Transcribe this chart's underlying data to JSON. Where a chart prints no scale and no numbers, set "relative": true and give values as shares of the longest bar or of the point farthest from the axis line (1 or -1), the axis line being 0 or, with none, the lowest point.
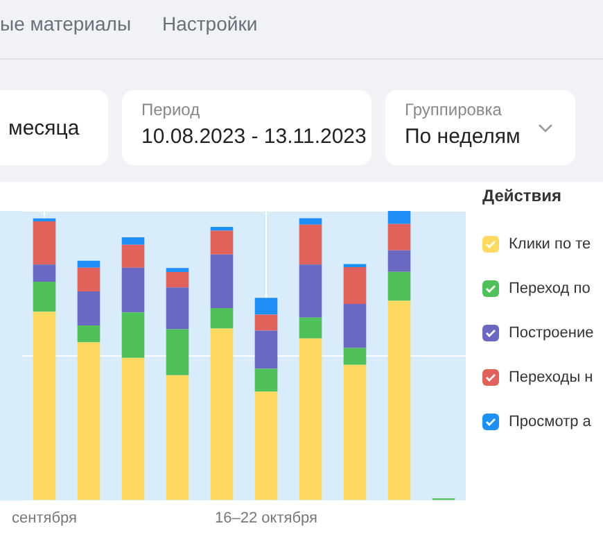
{
  "chart_data": {
    "type": "bar",
    "stacked": true,
    "relative": true,
    "grid": true,
    "legend": "right",
    "legend_title": "Действия",
    "categories": [
      "сентября",
      null,
      null,
      null,
      null,
      "16–22 октября",
      null,
      null,
      null,
      null
    ],
    "series": [
      {
        "name": "Клики по те",
        "color": "#fdd960",
        "values": [
          0.652,
          0.547,
          0.493,
          0.433,
          0.594,
          0.376,
          0.56,
          0.469,
          0.69,
          0
        ]
      },
      {
        "name": "Переход по",
        "color": "#4fc05a",
        "values": [
          0.104,
          0.058,
          0.157,
          0.159,
          0.071,
          0.079,
          0.072,
          0.058,
          0.1,
          0.008
        ]
      },
      {
        "name": "Построение",
        "color": "#6a68c0",
        "values": [
          0.059,
          0.117,
          0.154,
          0.144,
          0.185,
          0.132,
          0.183,
          0.152,
          0.074,
          0
        ]
      },
      {
        "name": "Переходы н",
        "color": "#e0625a",
        "values": [
          0.149,
          0.082,
          0.079,
          0.053,
          0.082,
          0.055,
          0.138,
          0.127,
          0.091,
          0
        ]
      },
      {
        "name": "Просмотр а",
        "color": "#1e8ff5",
        "values": [
          0.01,
          0.024,
          0.026,
          0.014,
          0.013,
          0.058,
          0.022,
          0.011,
          0.045,
          0
        ]
      }
    ],
    "annotations": [
      "ые материалы",
      "Настройки",
      "месяца",
      "Период",
      "10.08.2023 - 13.11.2023",
      "Группировка",
      "По неделям"
    ]
  }
}
